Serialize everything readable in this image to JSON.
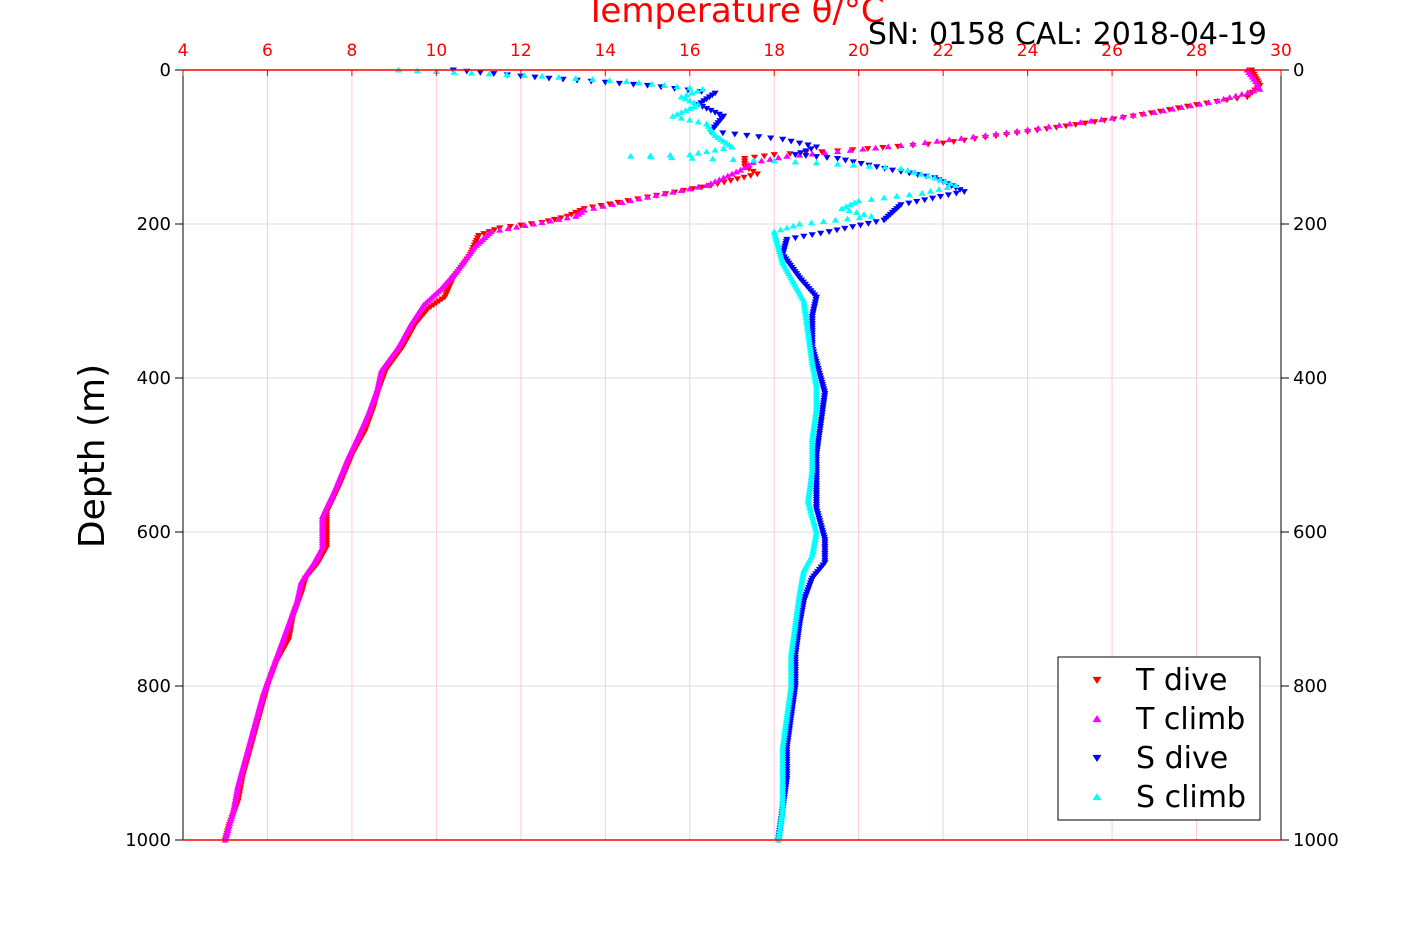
{
  "colors": {
    "t_axis": "#ff0000",
    "t_dive": "#ff0000",
    "t_climb": "#ff00ff",
    "s_dive": "#0000ff",
    "s_climb": "#00ffff",
    "grid": "#dddddd",
    "t_grid": "#ffc8dc",
    "frame": "#000000"
  },
  "chart_data": {
    "type": "scatter",
    "title": "Temperature θ/°C",
    "subtitle": "SN: 0158  CAL: 2018-04-19",
    "xlabel": "Temperature θ/°C",
    "ylabel": "Depth (m)",
    "xlim": [
      4,
      30
    ],
    "ylim": [
      1000,
      0
    ],
    "x_ticks": [
      "4",
      "6",
      "8",
      "10",
      "12",
      "14",
      "16",
      "18",
      "20",
      "22",
      "24",
      "26",
      "28",
      "30"
    ],
    "y_ticks": [
      "0",
      "200",
      "400",
      "600",
      "800",
      "1000"
    ],
    "grid": true,
    "legend_position": "bottom-right",
    "series": [
      {
        "name": "T dive",
        "marker": "triangle-down",
        "points": [
          [
            29.3,
            0
          ],
          [
            29.5,
            20
          ],
          [
            29.2,
            35
          ],
          [
            28,
            45
          ],
          [
            26.5,
            60
          ],
          [
            24,
            80
          ],
          [
            22,
            95
          ],
          [
            19.5,
            105
          ],
          [
            18,
            110
          ],
          [
            17.3,
            115
          ],
          [
            17.3,
            125
          ],
          [
            17.6,
            135
          ],
          [
            16.5,
            150
          ],
          [
            15,
            165
          ],
          [
            14.3,
            172
          ],
          [
            13.5,
            180
          ],
          [
            13.1,
            190
          ],
          [
            12.5,
            198
          ],
          [
            11.5,
            205
          ],
          [
            11,
            215
          ],
          [
            10.8,
            240
          ],
          [
            10.4,
            270
          ],
          [
            10.2,
            295
          ],
          [
            9.8,
            310
          ],
          [
            9.5,
            330
          ],
          [
            9.2,
            360
          ],
          [
            8.8,
            390
          ],
          [
            8.6,
            420
          ],
          [
            8.5,
            440
          ],
          [
            8.3,
            470
          ],
          [
            8,
            500
          ],
          [
            7.7,
            540
          ],
          [
            7.4,
            575
          ],
          [
            7.4,
            620
          ],
          [
            7.2,
            640
          ],
          [
            6.9,
            660
          ],
          [
            6.8,
            680
          ],
          [
            6.6,
            710
          ],
          [
            6.5,
            740
          ],
          [
            6.2,
            770
          ],
          [
            6,
            800
          ],
          [
            5.8,
            840
          ],
          [
            5.6,
            880
          ],
          [
            5.4,
            920
          ],
          [
            5.3,
            950
          ],
          [
            5.1,
            980
          ],
          [
            5.0,
            1000
          ]
        ]
      },
      {
        "name": "T climb",
        "marker": "triangle-up",
        "points": [
          [
            29.2,
            0
          ],
          [
            29.4,
            15
          ],
          [
            29.5,
            25
          ],
          [
            28.5,
            40
          ],
          [
            27,
            55
          ],
          [
            25,
            70
          ],
          [
            23,
            85
          ],
          [
            21,
            98
          ],
          [
            19.5,
            106
          ],
          [
            18.3,
            112
          ],
          [
            17.5,
            120
          ],
          [
            17.2,
            130
          ],
          [
            16.4,
            150
          ],
          [
            15,
            165
          ],
          [
            14.4,
            172
          ],
          [
            13.5,
            182
          ],
          [
            13.3,
            190
          ],
          [
            12.3,
            200
          ],
          [
            11.3,
            210
          ],
          [
            10.9,
            230
          ],
          [
            10.5,
            260
          ],
          [
            10.1,
            285
          ],
          [
            9.7,
            305
          ],
          [
            9.4,
            330
          ],
          [
            9.1,
            360
          ],
          [
            8.7,
            390
          ],
          [
            8.6,
            415
          ],
          [
            8.4,
            445
          ],
          [
            8.2,
            470
          ],
          [
            7.9,
            505
          ],
          [
            7.6,
            545
          ],
          [
            7.3,
            580
          ],
          [
            7.3,
            620
          ],
          [
            7.1,
            640
          ],
          [
            6.8,
            665
          ],
          [
            6.7,
            690
          ],
          [
            6.5,
            720
          ],
          [
            6.3,
            750
          ],
          [
            6.1,
            780
          ],
          [
            5.9,
            810
          ],
          [
            5.7,
            850
          ],
          [
            5.5,
            890
          ],
          [
            5.3,
            930
          ],
          [
            5.2,
            960
          ],
          [
            5.0,
            1000
          ]
        ]
      },
      {
        "name": "S dive",
        "marker": "triangle-down",
        "points": [
          [
            10.4,
            0
          ],
          [
            12,
            8
          ],
          [
            15,
            20
          ],
          [
            16.6,
            30
          ],
          [
            16.2,
            45
          ],
          [
            16.8,
            60
          ],
          [
            16.5,
            80
          ],
          [
            18.2,
            90
          ],
          [
            19,
            100
          ],
          [
            18.5,
            110
          ],
          [
            19.5,
            115
          ],
          [
            20.8,
            130
          ],
          [
            21.8,
            140
          ],
          [
            22.5,
            158
          ],
          [
            21,
            175
          ],
          [
            20.6,
            195
          ],
          [
            19.3,
            210
          ],
          [
            18.3,
            220
          ],
          [
            18.2,
            240
          ],
          [
            18.6,
            270
          ],
          [
            19.0,
            295
          ],
          [
            18.9,
            320
          ],
          [
            18.9,
            360
          ],
          [
            19.1,
            400
          ],
          [
            19.2,
            420
          ],
          [
            19.1,
            460
          ],
          [
            19.0,
            500
          ],
          [
            19.0,
            540
          ],
          [
            19.0,
            570
          ],
          [
            19.2,
            610
          ],
          [
            19.2,
            640
          ],
          [
            18.9,
            660
          ],
          [
            18.7,
            690
          ],
          [
            18.6,
            720
          ],
          [
            18.5,
            760
          ],
          [
            18.5,
            800
          ],
          [
            18.4,
            840
          ],
          [
            18.3,
            880
          ],
          [
            18.3,
            920
          ],
          [
            18.2,
            960
          ],
          [
            18.1,
            1000
          ]
        ]
      },
      {
        "name": "S climb",
        "marker": "triangle-up",
        "points": [
          [
            9.1,
            0
          ],
          [
            10,
            2
          ],
          [
            12.5,
            8
          ],
          [
            14.5,
            15
          ],
          [
            16.3,
            25
          ],
          [
            15.8,
            35
          ],
          [
            16.2,
            45
          ],
          [
            15.6,
            60
          ],
          [
            16.4,
            70
          ],
          [
            16.6,
            85
          ],
          [
            17.0,
            100
          ],
          [
            16.0,
            110
          ],
          [
            14.6,
            112
          ],
          [
            18.0,
            118
          ],
          [
            19.5,
            122
          ],
          [
            21.0,
            128
          ],
          [
            21.8,
            140
          ],
          [
            22.3,
            150
          ],
          [
            21.5,
            160
          ],
          [
            20.0,
            170
          ],
          [
            19.6,
            180
          ],
          [
            20.3,
            190
          ],
          [
            18.6,
            200
          ],
          [
            18.0,
            210
          ],
          [
            18.1,
            230
          ],
          [
            18.2,
            250
          ],
          [
            18.4,
            270
          ],
          [
            18.7,
            300
          ],
          [
            18.8,
            340
          ],
          [
            18.9,
            380
          ],
          [
            19.0,
            410
          ],
          [
            19.0,
            440
          ],
          [
            18.9,
            480
          ],
          [
            18.9,
            520
          ],
          [
            18.8,
            560
          ],
          [
            19.0,
            600
          ],
          [
            18.9,
            630
          ],
          [
            18.7,
            650
          ],
          [
            18.6,
            680
          ],
          [
            18.5,
            720
          ],
          [
            18.4,
            760
          ],
          [
            18.4,
            800
          ],
          [
            18.3,
            840
          ],
          [
            18.2,
            880
          ],
          [
            18.2,
            920
          ],
          [
            18.2,
            960
          ],
          [
            18.1,
            1000
          ]
        ]
      }
    ]
  }
}
